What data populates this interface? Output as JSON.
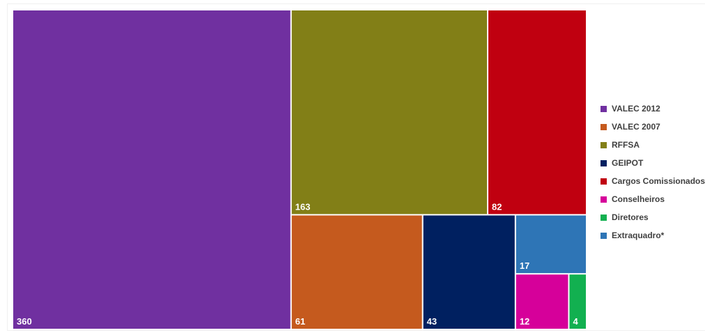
{
  "chart_data": {
    "type": "treemap",
    "title": "",
    "series": [
      {
        "name": "VALEC 2012",
        "value": 360,
        "color": "#7030a0"
      },
      {
        "name": "RFFSA",
        "value": 163,
        "color": "#827f17"
      },
      {
        "name": "Cargos Comissionados",
        "value": 82,
        "color": "#c00010"
      },
      {
        "name": "VALEC 2007",
        "value": 61,
        "color": "#c55a1e"
      },
      {
        "name": "GEIPOT",
        "value": 43,
        "color": "#002060"
      },
      {
        "name": "Extraquadro*",
        "value": 17,
        "color": "#2e75b6"
      },
      {
        "name": "Conselheiros",
        "value": 12,
        "color": "#d6009a"
      },
      {
        "name": "Diretores",
        "value": 4,
        "color": "#12b050"
      }
    ],
    "legend": {
      "position": "right",
      "order": [
        "VALEC 2012",
        "VALEC 2007",
        "RFFSA",
        "GEIPOT",
        "Cargos Comissionados",
        "Conselheiros",
        "Diretores",
        "Extraquadro*"
      ]
    }
  }
}
